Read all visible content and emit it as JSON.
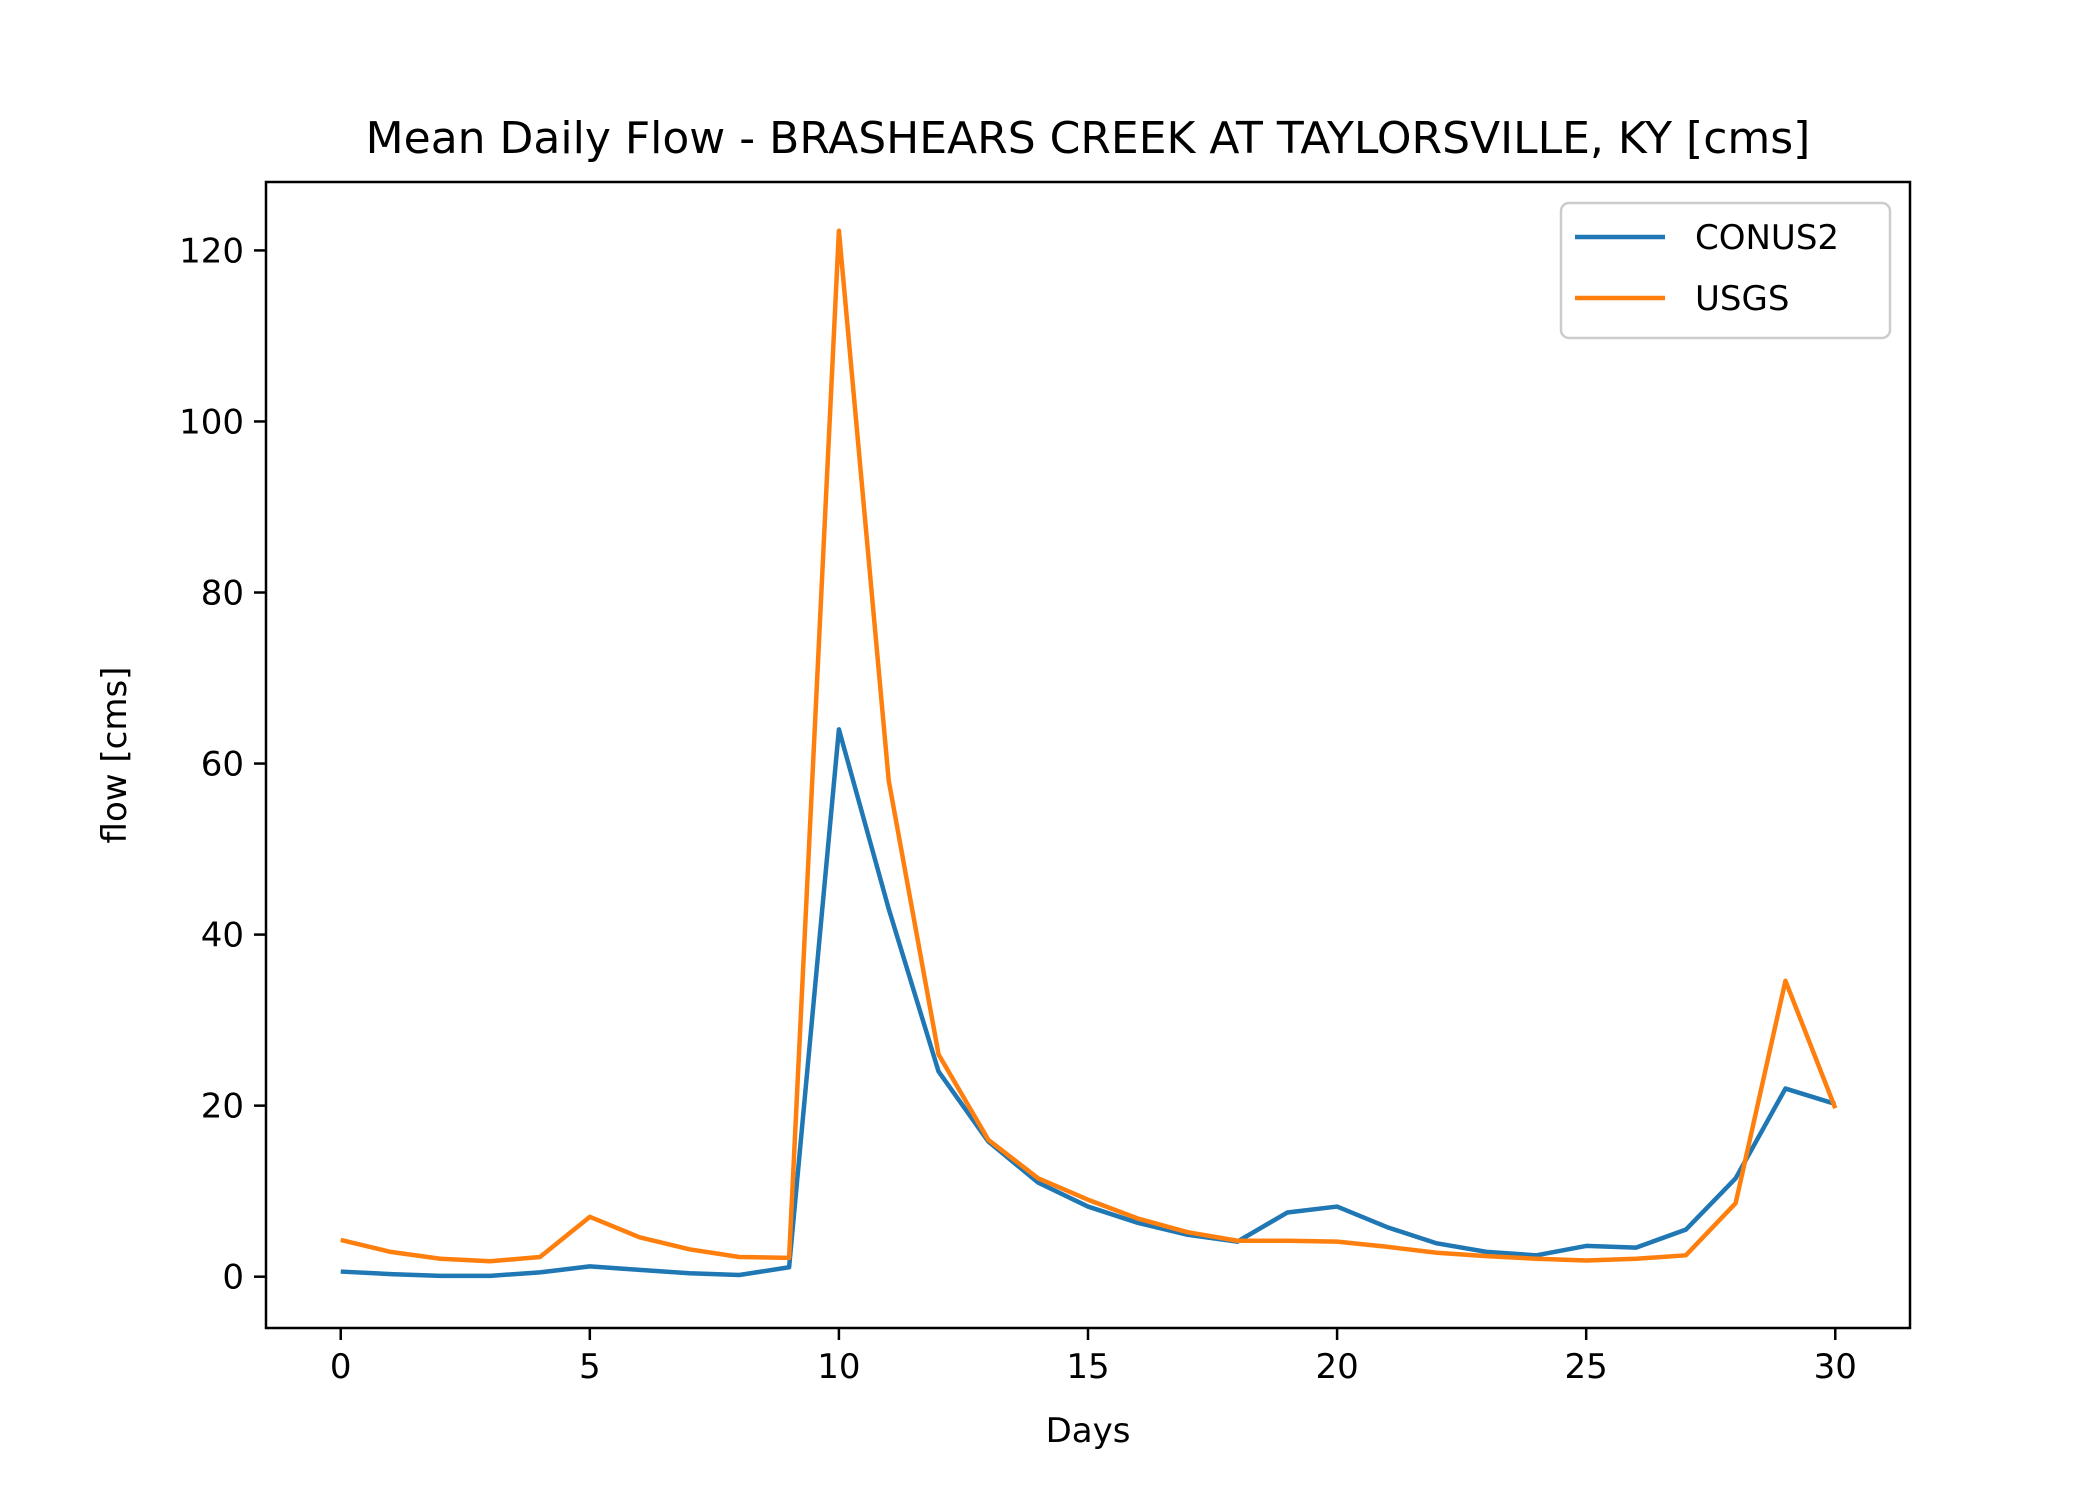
{
  "chart_data": {
    "type": "line",
    "title": "Mean Daily Flow - BRASHEARS CREEK AT TAYLORSVILLE, KY [cms]",
    "xlabel": "Days",
    "ylabel": "flow [cms]",
    "xlim": [
      -1.5,
      31.5
    ],
    "ylim": [
      -6,
      128
    ],
    "xticks": [
      0,
      5,
      10,
      15,
      20,
      25,
      30
    ],
    "yticks": [
      0,
      20,
      40,
      60,
      80,
      100,
      120
    ],
    "grid": false,
    "legend_position": "top-right",
    "x": [
      0,
      1,
      2,
      3,
      4,
      5,
      6,
      7,
      8,
      9,
      10,
      11,
      12,
      13,
      14,
      15,
      16,
      17,
      18,
      19,
      20,
      21,
      22,
      23,
      24,
      25,
      26,
      27,
      28,
      29,
      30
    ],
    "series": [
      {
        "name": "CONUS2",
        "color": "#1f77b4",
        "values": [
          0.6,
          0.3,
          0.1,
          0.1,
          0.5,
          1.2,
          0.8,
          0.4,
          0.2,
          1.1,
          64.0,
          43.0,
          24.0,
          15.8,
          11.0,
          8.2,
          6.3,
          4.9,
          4.1,
          7.5,
          8.2,
          5.8,
          3.9,
          2.9,
          2.5,
          3.6,
          3.4,
          5.5,
          11.5,
          22.0,
          20.2
        ]
      },
      {
        "name": "USGS",
        "color": "#ff7f0e",
        "values": [
          4.3,
          2.9,
          2.1,
          1.8,
          2.3,
          7.0,
          4.6,
          3.2,
          2.3,
          2.2,
          122.3,
          58.0,
          26.0,
          16.0,
          11.5,
          9.0,
          6.8,
          5.2,
          4.2,
          4.2,
          4.1,
          3.5,
          2.8,
          2.4,
          2.1,
          1.9,
          2.1,
          2.5,
          8.6,
          34.6,
          19.7
        ]
      }
    ]
  }
}
